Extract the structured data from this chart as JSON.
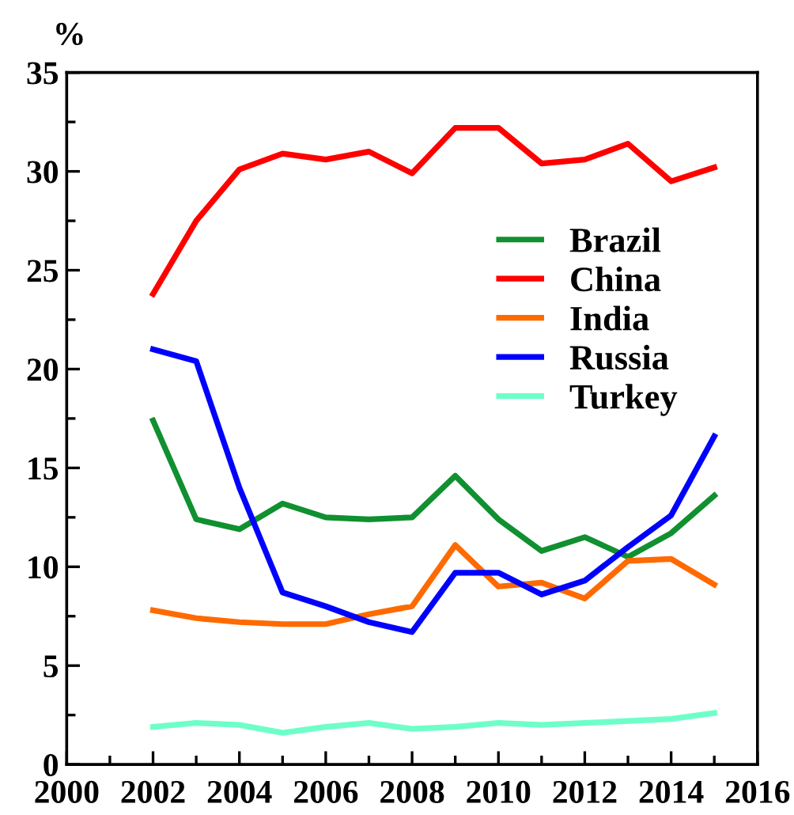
{
  "chart_data": {
    "type": "line",
    "ylabel": "%",
    "x": [
      2002,
      2003,
      2004,
      2005,
      2006,
      2007,
      2008,
      2009,
      2010,
      2011,
      2012,
      2013,
      2014,
      2015
    ],
    "series": [
      {
        "name": "Brazil",
        "color": "#109030",
        "values": [
          17.4,
          12.4,
          11.9,
          13.2,
          12.5,
          12.4,
          12.5,
          14.6,
          12.4,
          10.8,
          11.5,
          10.5,
          11.7,
          13.6
        ]
      },
      {
        "name": "China",
        "color": "#ff0000",
        "values": [
          23.8,
          27.5,
          30.1,
          30.9,
          30.6,
          31.0,
          29.9,
          32.2,
          32.2,
          30.4,
          30.6,
          31.4,
          29.5,
          30.2
        ]
      },
      {
        "name": "India",
        "color": "#ff6a00",
        "values": [
          7.8,
          7.4,
          7.2,
          7.1,
          7.1,
          7.6,
          8.0,
          11.1,
          9.0,
          9.2,
          8.4,
          10.3,
          10.4,
          9.1
        ]
      },
      {
        "name": "Russia",
        "color": "#0000ff",
        "values": [
          21.0,
          20.4,
          14.0,
          8.7,
          8.0,
          7.2,
          6.7,
          9.7,
          9.7,
          8.6,
          9.3,
          11.0,
          12.6,
          16.6
        ]
      },
      {
        "name": "Turkey",
        "color": "#6effc8",
        "values": [
          1.9,
          2.1,
          2.0,
          1.6,
          1.9,
          2.1,
          1.8,
          1.9,
          2.1,
          2.0,
          2.1,
          2.2,
          2.3,
          2.6
        ]
      }
    ],
    "xlim": [
      2000,
      2016
    ],
    "xticks": [
      2000,
      2002,
      2004,
      2006,
      2008,
      2010,
      2012,
      2014,
      2016
    ],
    "ylim": [
      0,
      35
    ],
    "yticks": [
      0,
      5,
      10,
      15,
      20,
      25,
      30,
      35
    ],
    "legend": "right",
    "grid": false,
    "line_style": "solid",
    "marker": "none"
  }
}
